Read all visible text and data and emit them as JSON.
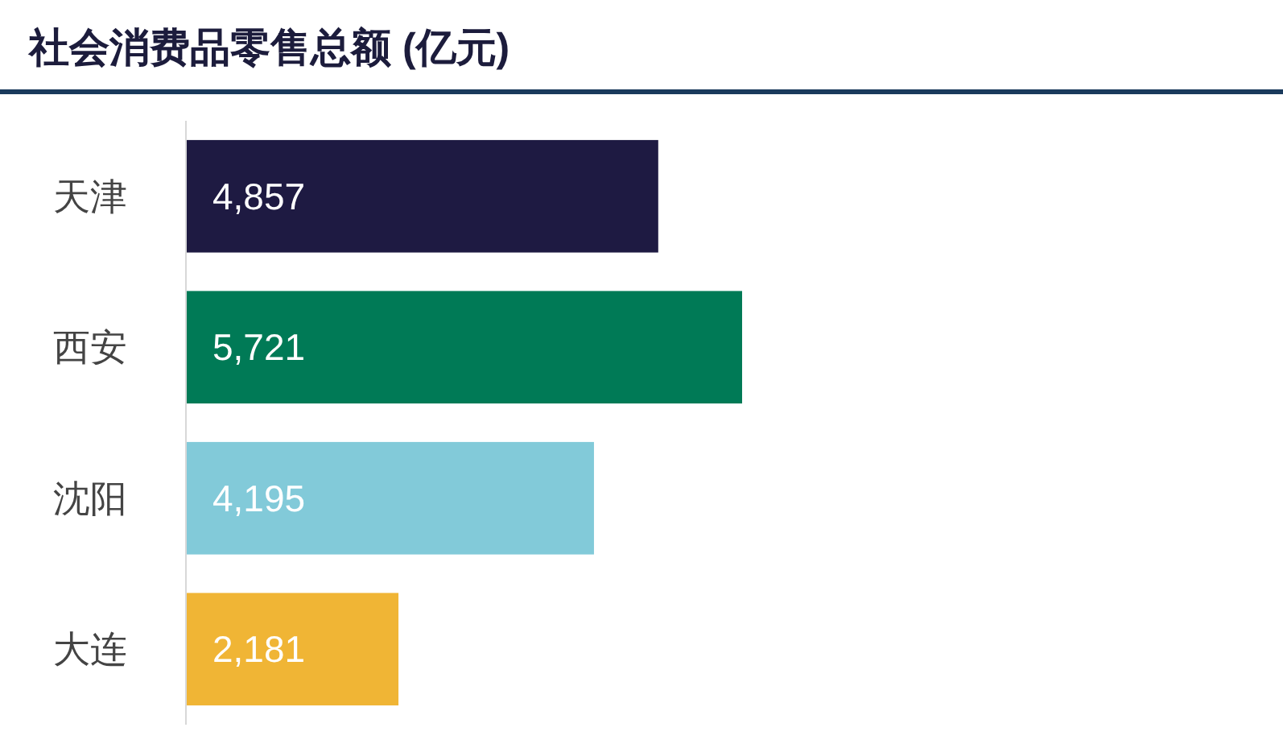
{
  "chart_data": {
    "type": "bar",
    "orientation": "horizontal",
    "title": "社会消费品零售总额 (亿元)",
    "categories": [
      "天津",
      "西安",
      "沈阳",
      "大连"
    ],
    "values": [
      4857,
      5721,
      4195,
      2181
    ],
    "colors": [
      "#1e1a42",
      "#007a56",
      "#82cad9",
      "#f0b535"
    ],
    "value_labels": [
      "4,857",
      "5,721",
      "4,195",
      "2,181"
    ]
  }
}
